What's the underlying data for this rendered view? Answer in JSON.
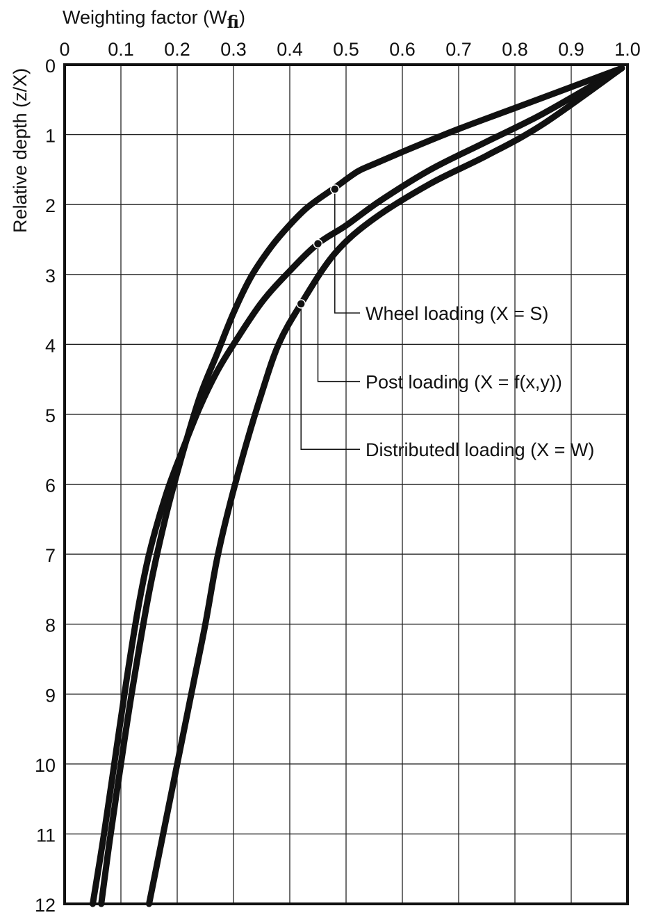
{
  "chart_data": {
    "type": "line",
    "title": "",
    "xlabel": "Weighting factor (W",
    "xlabel_subscript": "fi",
    "xlabel_suffix": ")",
    "ylabel": "Relative depth (z/X)",
    "xlim": [
      0,
      1.0
    ],
    "ylim": [
      0,
      12
    ],
    "x_axis_position": "top",
    "y_axis_inverted": true,
    "grid": true,
    "x_ticks": [
      "0",
      "0.1",
      "0.2",
      "0.3",
      "0.4",
      "0.5",
      "0.6",
      "0.7",
      "0.8",
      "0.9",
      "1.0"
    ],
    "y_ticks": [
      "0",
      "1",
      "2",
      "3",
      "4",
      "5",
      "6",
      "7",
      "8",
      "9",
      "10",
      "11",
      "12"
    ],
    "series": [
      {
        "name": "Wheel loading (X = S)",
        "points": [
          [
            0.99,
            0.05
          ],
          [
            0.8,
            0.62
          ],
          [
            0.7,
            0.92
          ],
          [
            0.62,
            1.18
          ],
          [
            0.55,
            1.42
          ],
          [
            0.52,
            1.53
          ],
          [
            0.48,
            1.76
          ],
          [
            0.43,
            2.05
          ],
          [
            0.39,
            2.38
          ],
          [
            0.36,
            2.68
          ],
          [
            0.33,
            3.05
          ],
          [
            0.3,
            3.55
          ],
          [
            0.27,
            4.15
          ],
          [
            0.24,
            4.75
          ],
          [
            0.21,
            5.55
          ],
          [
            0.18,
            6.45
          ],
          [
            0.15,
            7.55
          ],
          [
            0.12,
            8.95
          ],
          [
            0.1,
            10.0
          ],
          [
            0.08,
            11.1
          ],
          [
            0.065,
            12.0
          ]
        ]
      },
      {
        "name": "Post loading (X = f(x,y))",
        "points": [
          [
            0.99,
            0.05
          ],
          [
            0.85,
            0.7
          ],
          [
            0.75,
            1.1
          ],
          [
            0.65,
            1.5
          ],
          [
            0.56,
            1.95
          ],
          [
            0.5,
            2.3
          ],
          [
            0.45,
            2.56
          ],
          [
            0.4,
            2.95
          ],
          [
            0.35,
            3.4
          ],
          [
            0.3,
            4.0
          ],
          [
            0.27,
            4.4
          ],
          [
            0.24,
            4.9
          ],
          [
            0.21,
            5.5
          ],
          [
            0.18,
            6.15
          ],
          [
            0.15,
            7.0
          ],
          [
            0.13,
            7.8
          ],
          [
            0.11,
            8.8
          ],
          [
            0.09,
            9.9
          ],
          [
            0.07,
            11.0
          ],
          [
            0.05,
            12.0
          ]
        ]
      },
      {
        "name": "Distributedl loading (X = W)",
        "points": [
          [
            0.99,
            0.05
          ],
          [
            0.85,
            0.85
          ],
          [
            0.75,
            1.3
          ],
          [
            0.65,
            1.7
          ],
          [
            0.55,
            2.2
          ],
          [
            0.48,
            2.7
          ],
          [
            0.42,
            3.42
          ],
          [
            0.38,
            4.0
          ],
          [
            0.35,
            4.7
          ],
          [
            0.32,
            5.5
          ],
          [
            0.29,
            6.4
          ],
          [
            0.27,
            7.1
          ],
          [
            0.25,
            8.0
          ],
          [
            0.23,
            8.8
          ],
          [
            0.21,
            9.6
          ],
          [
            0.19,
            10.4
          ],
          [
            0.17,
            11.2
          ],
          [
            0.15,
            12.0
          ]
        ]
      }
    ],
    "annotations": [
      {
        "label": "Wheel loading (X = S)",
        "anchor": [
          0.48,
          1.78
        ],
        "label_y": 3.55
      },
      {
        "label": "Post loading (X = f(x,y))",
        "anchor": [
          0.45,
          2.56
        ],
        "label_y": 4.53
      },
      {
        "label": "Distributedl loading (X = W)",
        "anchor": [
          0.42,
          3.42
        ],
        "label_y": 5.5
      }
    ]
  }
}
